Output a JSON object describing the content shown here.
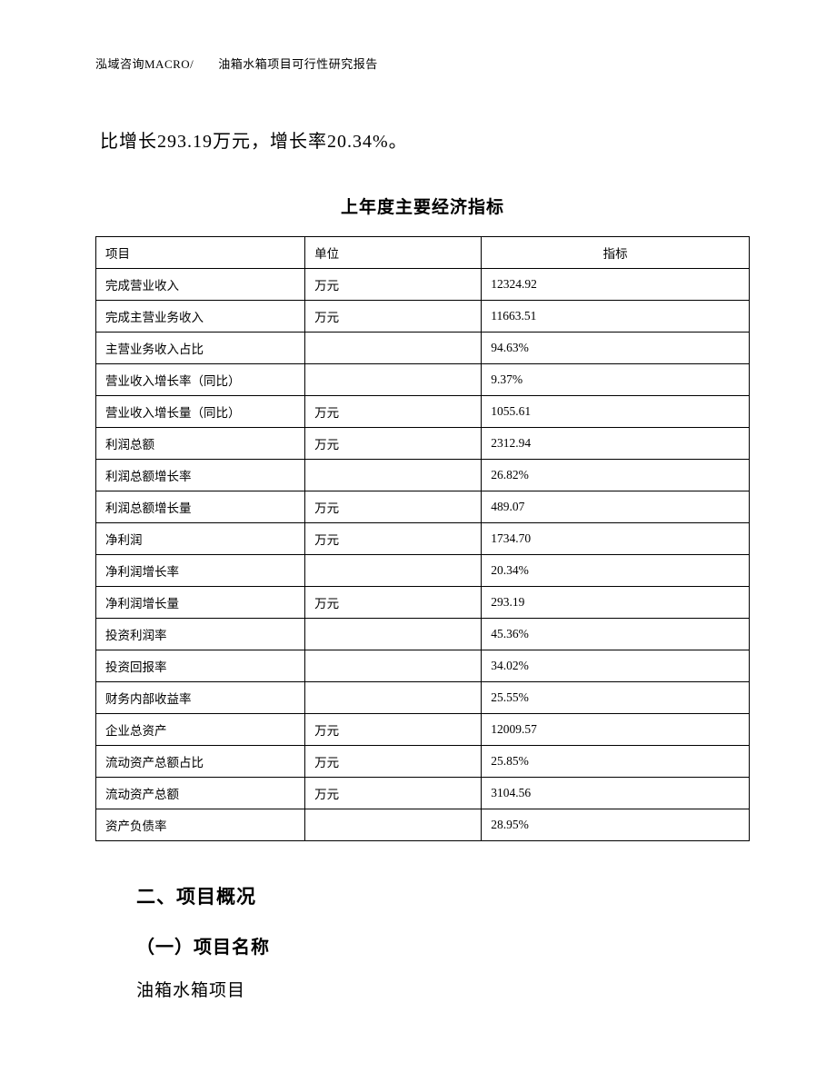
{
  "header": "泓域咨询MACRO/　　油箱水箱项目可行性研究报告",
  "body_text": "比增长293.19万元，增长率20.34%。",
  "table_title": "上年度主要经济指标",
  "table": {
    "headers": [
      "项目",
      "单位",
      "指标"
    ],
    "rows": [
      [
        "完成营业收入",
        "万元",
        "12324.92"
      ],
      [
        "完成主营业务收入",
        "万元",
        "11663.51"
      ],
      [
        "主营业务收入占比",
        "",
        "94.63%"
      ],
      [
        "营业收入增长率（同比）",
        "",
        "9.37%"
      ],
      [
        "营业收入增长量（同比）",
        "万元",
        "1055.61"
      ],
      [
        "利润总额",
        "万元",
        "2312.94"
      ],
      [
        "利润总额增长率",
        "",
        "26.82%"
      ],
      [
        "利润总额增长量",
        "万元",
        "489.07"
      ],
      [
        "净利润",
        "万元",
        "1734.70"
      ],
      [
        "净利润增长率",
        "",
        "20.34%"
      ],
      [
        "净利润增长量",
        "万元",
        "293.19"
      ],
      [
        "投资利润率",
        "",
        "45.36%"
      ],
      [
        "投资回报率",
        "",
        "34.02%"
      ],
      [
        "财务内部收益率",
        "",
        "25.55%"
      ],
      [
        "企业总资产",
        "万元",
        "12009.57"
      ],
      [
        "流动资产总额占比",
        "万元",
        "25.85%"
      ],
      [
        "流动资产总额",
        "万元",
        "3104.56"
      ],
      [
        "资产负债率",
        "",
        "28.95%"
      ]
    ]
  },
  "section2": {
    "heading": "二、项目概况",
    "sub_heading": "（一）项目名称",
    "content": "油箱水箱项目"
  }
}
